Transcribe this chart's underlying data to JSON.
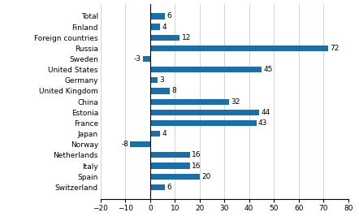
{
  "categories": [
    "Switzerland",
    "Spain",
    "Italy",
    "Netherlands",
    "Norway",
    "Japan",
    "France",
    "Estonia",
    "China",
    "United Kingdom",
    "Germany",
    "United States",
    "Sweden",
    "Russia",
    "Foreign countries",
    "Finland",
    "Total"
  ],
  "values": [
    6,
    20,
    16,
    16,
    -8,
    4,
    43,
    44,
    32,
    8,
    3,
    45,
    -3,
    72,
    12,
    4,
    6
  ],
  "bar_color": "#1a6fa8",
  "xlim": [
    -20,
    80
  ],
  "xticks": [
    -20,
    -10,
    0,
    10,
    20,
    30,
    40,
    50,
    60,
    70,
    80
  ],
  "label_fontsize": 6.5,
  "value_fontsize": 6.5,
  "bar_height": 0.55,
  "figsize": [
    4.42,
    2.72
  ],
  "dpi": 100
}
